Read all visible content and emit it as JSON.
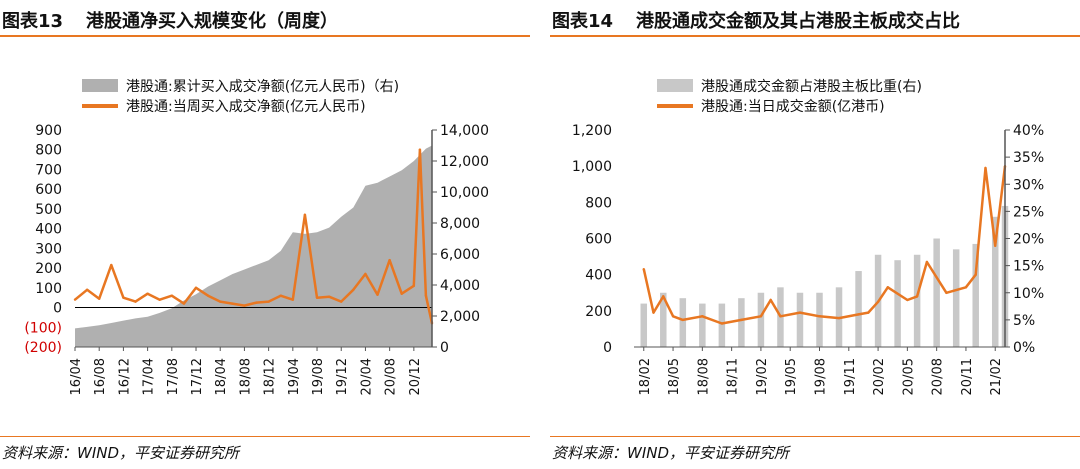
{
  "left": {
    "figure_no": "图表13",
    "title": "港股通净买入规模变化（周度）",
    "source": "资料来源：WIND，平安证券研究所"
  },
  "right": {
    "figure_no": "图表14",
    "title": "港股通成交金额及其占港股主板成交占比",
    "source": "资料来源：WIND，平安证券研究所"
  },
  "colors": {
    "accent": "#e87722",
    "bar": "#b0b0b0",
    "bar_light": "#c8c8c8",
    "negative": "#d00000"
  },
  "chart_data": [
    {
      "type": "bar+line",
      "title": "",
      "legend": [
        "港股通:累计买入成交净额(亿元人民币)（右)",
        "港股通:当周买入成交净额(亿元人民币)"
      ],
      "legend_placement": "top",
      "x_tick_labels": [
        "16/04",
        "16/08",
        "16/12",
        "17/04",
        "17/08",
        "17/12",
        "18/04",
        "18/08",
        "18/12",
        "19/04",
        "19/08",
        "19/12",
        "20/04",
        "20/08",
        "20/12"
      ],
      "y_left": {
        "ylim": [
          -200,
          900
        ],
        "ticks": [
          "(200)",
          "(100)",
          "0",
          "100",
          "200",
          "300",
          "400",
          "500",
          "600",
          "700",
          "800",
          "900"
        ]
      },
      "y_right": {
        "ylim": [
          0,
          14000
        ],
        "ticks": [
          "0",
          "2,000",
          "4,000",
          "6,000",
          "8,000",
          "10,000",
          "12,000",
          "14,000"
        ]
      },
      "series": [
        {
          "name": "港股通:累计买入成交净额(亿元人民币)（右)",
          "kind": "area",
          "axis": "right",
          "x": [
            "16/04",
            "16/06",
            "16/08",
            "16/10",
            "16/12",
            "17/02",
            "17/04",
            "17/06",
            "17/08",
            "17/10",
            "17/12",
            "18/02",
            "18/04",
            "18/06",
            "18/08",
            "18/10",
            "18/12",
            "19/02",
            "19/04",
            "19/06",
            "19/08",
            "19/10",
            "19/12",
            "20/02",
            "20/04",
            "20/06",
            "20/08",
            "20/10",
            "20/12",
            "21/02",
            "21/03"
          ],
          "values": [
            1200,
            1300,
            1400,
            1550,
            1700,
            1850,
            1950,
            2200,
            2500,
            3000,
            3400,
            3900,
            4300,
            4700,
            5000,
            5300,
            5600,
            6200,
            7400,
            7300,
            7400,
            7700,
            8400,
            9000,
            10400,
            10600,
            11000,
            11400,
            12000,
            12800,
            13000
          ]
        },
        {
          "name": "港股通:当周买入成交净额(亿元人民币)",
          "kind": "line",
          "axis": "left",
          "x": [
            "16/04",
            "16/06",
            "16/08",
            "16/10",
            "16/12",
            "17/02",
            "17/04",
            "17/06",
            "17/08",
            "17/10",
            "17/12",
            "18/02",
            "18/04",
            "18/06",
            "18/08",
            "18/10",
            "18/12",
            "19/02",
            "19/04",
            "19/06",
            "19/08",
            "19/10",
            "19/12",
            "20/02",
            "20/04",
            "20/06",
            "20/08",
            "20/10",
            "20/12",
            "21/01",
            "21/02",
            "21/03"
          ],
          "values": [
            40,
            90,
            45,
            215,
            50,
            30,
            70,
            40,
            60,
            20,
            100,
            60,
            30,
            20,
            10,
            25,
            30,
            60,
            40,
            470,
            50,
            55,
            30,
            90,
            170,
            65,
            240,
            70,
            110,
            800,
            60,
            -80
          ]
        }
      ]
    },
    {
      "type": "bar+line",
      "title": "",
      "legend": [
        "港股通成交金额占港股主板比重(右)",
        "港股通:当日成交金额(亿港币)"
      ],
      "legend_placement": "top",
      "x_tick_labels": [
        "18/02",
        "18/05",
        "18/08",
        "18/11",
        "19/02",
        "19/05",
        "19/08",
        "19/11",
        "20/02",
        "20/05",
        "20/08",
        "20/11",
        "21/02"
      ],
      "y_left": {
        "ylim": [
          0,
          1200
        ],
        "ticks": [
          "0",
          "200",
          "400",
          "600",
          "800",
          "1,000",
          "1,200"
        ]
      },
      "y_right": {
        "ylim": [
          0,
          40
        ],
        "ticks": [
          "0%",
          "5%",
          "10%",
          "15%",
          "20%",
          "25%",
          "30%",
          "35%",
          "40%"
        ]
      },
      "series": [
        {
          "name": "港股通成交金额占港股主板比重(右)",
          "kind": "bar",
          "axis": "right",
          "unit": "%",
          "x": [
            "18/02",
            "18/04",
            "18/06",
            "18/08",
            "18/10",
            "18/12",
            "19/02",
            "19/04",
            "19/06",
            "19/08",
            "19/10",
            "19/12",
            "20/02",
            "20/04",
            "20/06",
            "20/08",
            "20/10",
            "20/12",
            "21/02",
            "21/03"
          ],
          "values": [
            8,
            10,
            9,
            8,
            8,
            9,
            10,
            11,
            10,
            10,
            11,
            14,
            17,
            16,
            17,
            20,
            18,
            19,
            24,
            26
          ]
        },
        {
          "name": "港股通:当日成交金额(亿港币)",
          "kind": "line",
          "axis": "left",
          "x": [
            "18/02",
            "18/03",
            "18/04",
            "18/05",
            "18/06",
            "18/08",
            "18/10",
            "18/12",
            "19/02",
            "19/03",
            "19/04",
            "19/06",
            "19/08",
            "19/10",
            "19/12",
            "20/01",
            "20/02",
            "20/03",
            "20/05",
            "20/06",
            "20/07",
            "20/09",
            "20/11",
            "20/12",
            "21/01",
            "21/02",
            "21/03"
          ],
          "values": [
            430,
            190,
            280,
            170,
            150,
            170,
            130,
            150,
            170,
            260,
            170,
            190,
            170,
            160,
            180,
            190,
            250,
            330,
            260,
            280,
            470,
            300,
            330,
            400,
            990,
            560,
            1000
          ]
        }
      ]
    }
  ]
}
